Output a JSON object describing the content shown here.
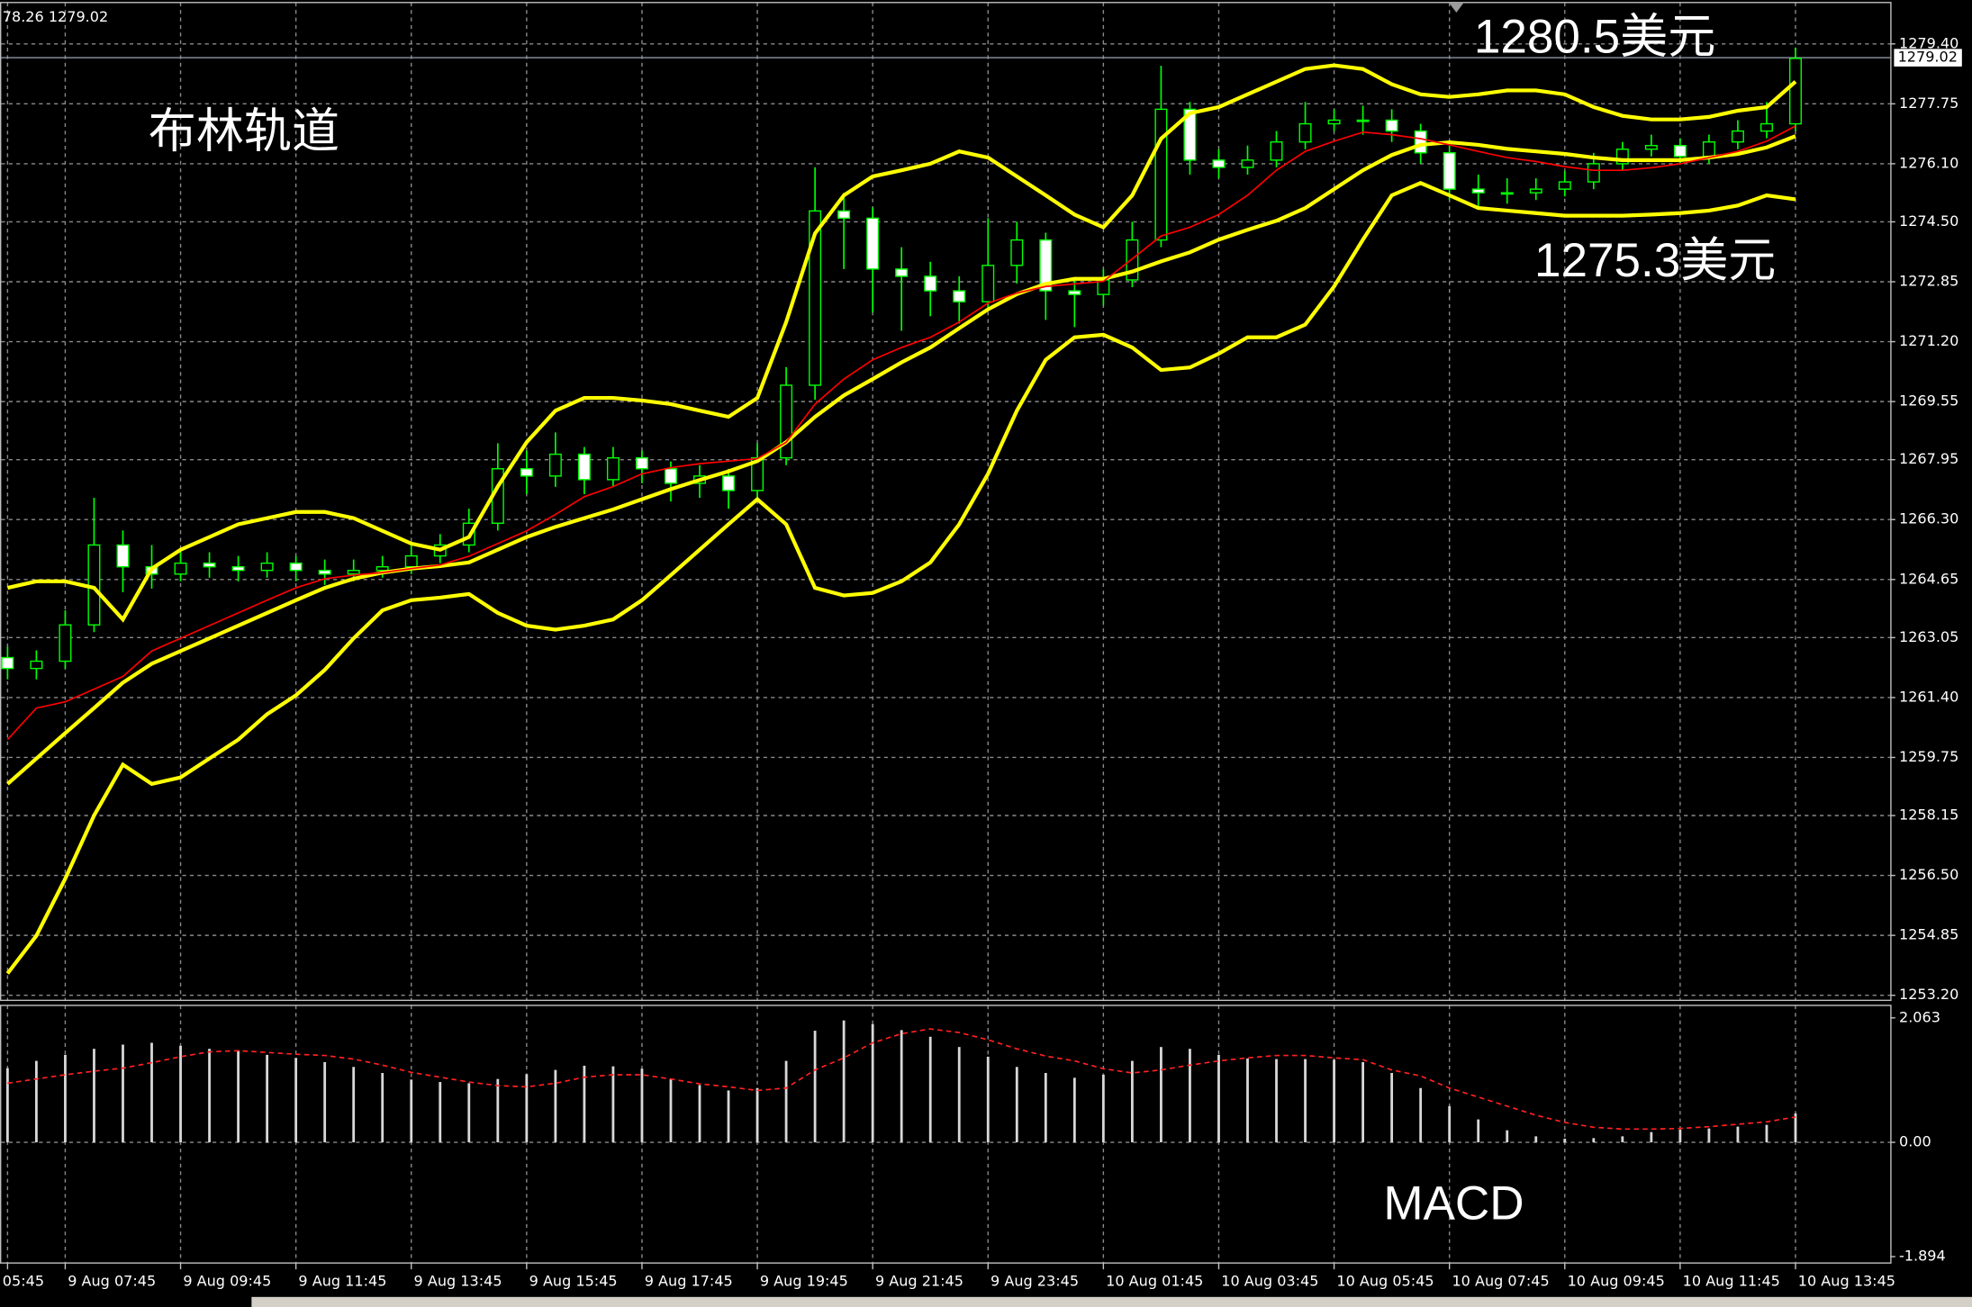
{
  "chart_data": [
    {
      "type": "candlestick",
      "info": "78.26 1279.02",
      "current_price": 1279.02,
      "annotations": [
        "布林轨道",
        "1280.5美元",
        "1275.3美元"
      ],
      "categories": [
        "05:45",
        null,
        "9 Aug 07:45",
        null,
        null,
        null,
        "9 Aug 09:45",
        null,
        null,
        null,
        "9 Aug 11:45",
        null,
        null,
        null,
        "9 Aug 13:45",
        null,
        null,
        null,
        "9 Aug 15:45",
        null,
        null,
        null,
        "9 Aug 17:45",
        null,
        null,
        null,
        "9 Aug 19:45",
        null,
        null,
        null,
        "9 Aug 21:45",
        null,
        null,
        null,
        "9 Aug 23:45",
        null,
        null,
        null,
        "10 Aug 01:45",
        null,
        null,
        null,
        "10 Aug 03:45",
        null,
        null,
        null,
        "10 Aug 05:45",
        null,
        null,
        null,
        "10 Aug 07:45",
        null,
        null,
        null,
        "10 Aug 09:45",
        null,
        null,
        null,
        "10 Aug 11:45",
        null,
        null,
        null,
        "10 Aug 13:45"
      ],
      "open": [
        1262.5,
        1262.2,
        1262.4,
        1263.4,
        1265.6,
        1265.0,
        1264.8,
        1265.1,
        1265.0,
        1264.9,
        1265.1,
        1264.9,
        1264.8,
        1264.9,
        1265.0,
        1265.3,
        1265.6,
        1266.2,
        1267.7,
        1267.5,
        1268.1,
        1267.4,
        1268.0,
        1267.7,
        1267.3,
        1267.5,
        1267.1,
        1268.0,
        1270.0,
        1274.8,
        1274.6,
        1273.2,
        1273.0,
        1272.6,
        1272.3,
        1273.3,
        1274.0,
        1272.6,
        1272.5,
        1272.9,
        1274.0,
        1277.6,
        1276.2,
        1276.0,
        1276.2,
        1276.7,
        1277.2,
        1277.3,
        1277.3,
        1277.0,
        1276.4,
        1275.4,
        1275.3,
        1275.3,
        1275.4,
        1275.6,
        1276.1,
        1276.5,
        1276.6,
        1276.3,
        1276.7,
        1277.0,
        1277.2
      ],
      "high": [
        1262.8,
        1262.7,
        1263.8,
        1266.9,
        1266.0,
        1265.6,
        1265.5,
        1265.4,
        1265.3,
        1265.4,
        1265.3,
        1265.2,
        1265.2,
        1265.3,
        1265.6,
        1265.9,
        1266.6,
        1268.4,
        1268.2,
        1268.7,
        1268.3,
        1268.3,
        1268.2,
        1267.9,
        1267.8,
        1267.7,
        1268.4,
        1270.5,
        1276.0,
        1275.3,
        1274.9,
        1273.8,
        1273.4,
        1273.0,
        1274.6,
        1274.5,
        1274.2,
        1272.9,
        1273.2,
        1274.5,
        1278.8,
        1277.8,
        1276.5,
        1276.6,
        1277.0,
        1277.8,
        1277.6,
        1277.7,
        1277.6,
        1277.2,
        1276.6,
        1275.8,
        1275.7,
        1275.7,
        1275.9,
        1276.4,
        1276.7,
        1276.9,
        1276.8,
        1276.9,
        1277.3,
        1277.8,
        1279.3
      ],
      "low": [
        1261.9,
        1261.9,
        1262.2,
        1263.2,
        1264.3,
        1264.4,
        1264.6,
        1264.7,
        1264.6,
        1264.7,
        1264.6,
        1264.5,
        1264.6,
        1264.7,
        1264.8,
        1265.1,
        1265.4,
        1266.0,
        1267.0,
        1267.2,
        1267.0,
        1267.2,
        1267.3,
        1266.8,
        1266.9,
        1266.6,
        1266.9,
        1267.8,
        1269.6,
        1273.2,
        1272.0,
        1271.5,
        1271.9,
        1271.7,
        1272.1,
        1272.8,
        1271.8,
        1271.6,
        1272.2,
        1272.7,
        1273.8,
        1275.8,
        1275.7,
        1275.8,
        1276.0,
        1276.5,
        1277.0,
        1276.9,
        1276.7,
        1276.1,
        1275.1,
        1274.9,
        1275.0,
        1275.1,
        1275.2,
        1275.4,
        1275.9,
        1276.3,
        1276.1,
        1276.1,
        1276.5,
        1276.8,
        1277.0
      ],
      "close": [
        1262.2,
        1262.4,
        1263.4,
        1265.6,
        1265.0,
        1264.8,
        1265.1,
        1265.0,
        1264.9,
        1265.1,
        1264.9,
        1264.8,
        1264.9,
        1265.0,
        1265.3,
        1265.6,
        1266.2,
        1267.7,
        1267.5,
        1268.1,
        1267.4,
        1268.0,
        1267.7,
        1267.3,
        1267.5,
        1267.1,
        1268.0,
        1270.0,
        1274.8,
        1274.6,
        1273.2,
        1273.0,
        1272.6,
        1272.3,
        1273.3,
        1274.0,
        1272.6,
        1272.5,
        1272.9,
        1274.0,
        1277.6,
        1276.2,
        1276.0,
        1276.2,
        1276.7,
        1277.2,
        1277.3,
        1277.3,
        1277.0,
        1276.4,
        1275.4,
        1275.3,
        1275.3,
        1275.4,
        1275.6,
        1276.1,
        1276.5,
        1276.6,
        1276.3,
        1276.7,
        1277.0,
        1277.2,
        1279.0
      ],
      "candle_color": "#00ff00",
      "series": [
        {
          "color": "#ffff00",
          "values": [
            1264.42,
            1264.6,
            1264.6,
            1264.42,
            1263.55,
            1264.95,
            1265.47,
            1265.82,
            1266.17,
            1266.34,
            1266.51,
            1266.51,
            1266.34,
            1265.99,
            1265.64,
            1265.47,
            1265.82,
            1267.21,
            1268.43,
            1269.3,
            1269.65,
            1269.65,
            1269.58,
            1269.48,
            1269.3,
            1269.13,
            1269.65,
            1271.74,
            1274.18,
            1275.23,
            1275.75,
            1275.92,
            1276.1,
            1276.44,
            1276.27,
            1275.75,
            1275.23,
            1274.7,
            1274.35,
            1275.23,
            1276.79,
            1277.49,
            1277.66,
            1278.01,
            1278.36,
            1278.71,
            1278.81,
            1278.71,
            1278.29,
            1278.01,
            1277.94,
            1278.01,
            1278.12,
            1278.12,
            1278.01,
            1277.66,
            1277.42,
            1277.32,
            1277.32,
            1277.39,
            1277.56,
            1277.66,
            1278.36
          ]
        },
        {
          "color": "#ffff00",
          "values": [
            1259.02,
            1259.72,
            1260.42,
            1261.11,
            1261.81,
            1262.33,
            1262.68,
            1263.03,
            1263.38,
            1263.73,
            1264.08,
            1264.42,
            1264.67,
            1264.84,
            1264.95,
            1265.02,
            1265.12,
            1265.47,
            1265.82,
            1266.1,
            1266.34,
            1266.58,
            1266.86,
            1267.14,
            1267.39,
            1267.63,
            1267.91,
            1268.43,
            1269.13,
            1269.72,
            1270.17,
            1270.63,
            1271.04,
            1271.57,
            1272.09,
            1272.51,
            1272.79,
            1272.93,
            1272.93,
            1273.13,
            1273.41,
            1273.66,
            1274.01,
            1274.28,
            1274.53,
            1274.88,
            1275.4,
            1275.92,
            1276.34,
            1276.62,
            1276.69,
            1276.62,
            1276.51,
            1276.44,
            1276.37,
            1276.27,
            1276.2,
            1276.2,
            1276.2,
            1276.27,
            1276.37,
            1276.55,
            1276.86
          ]
        },
        {
          "color": "#ffff00",
          "values": [
            1253.8,
            1254.84,
            1256.41,
            1258.15,
            1259.55,
            1259.02,
            1259.2,
            1259.72,
            1260.24,
            1260.94,
            1261.46,
            1262.16,
            1263.03,
            1263.8,
            1264.08,
            1264.15,
            1264.25,
            1263.73,
            1263.38,
            1263.27,
            1263.38,
            1263.55,
            1264.08,
            1264.77,
            1265.47,
            1266.17,
            1266.86,
            1266.17,
            1264.42,
            1264.21,
            1264.28,
            1264.6,
            1265.12,
            1266.17,
            1267.56,
            1269.3,
            1270.7,
            1271.32,
            1271.39,
            1271.04,
            1270.42,
            1270.49,
            1270.87,
            1271.32,
            1271.32,
            1271.67,
            1272.72,
            1274.01,
            1275.23,
            1275.57,
            1275.23,
            1274.88,
            1274.81,
            1274.74,
            1274.67,
            1274.67,
            1274.67,
            1274.7,
            1274.74,
            1274.81,
            1274.95,
            1275.23,
            1275.12
          ]
        },
        {
          "color": "#ff0000",
          "values": [
            1260.24,
            1261.11,
            1261.28,
            1261.63,
            1261.98,
            1262.68,
            1263.03,
            1263.38,
            1263.73,
            1264.08,
            1264.42,
            1264.67,
            1264.77,
            1264.84,
            1264.95,
            1265.05,
            1265.29,
            1265.64,
            1265.99,
            1266.44,
            1266.93,
            1267.21,
            1267.56,
            1267.73,
            1267.84,
            1267.91,
            1267.98,
            1268.43,
            1269.48,
            1270.17,
            1270.7,
            1271.04,
            1271.32,
            1271.74,
            1272.26,
            1272.54,
            1272.72,
            1272.79,
            1272.86,
            1273.48,
            1274.11,
            1274.35,
            1274.7,
            1275.23,
            1275.92,
            1276.44,
            1276.72,
            1276.97,
            1276.9,
            1276.79,
            1276.62,
            1276.44,
            1276.27,
            1276.16,
            1276.02,
            1275.92,
            1275.92,
            1275.99,
            1276.1,
            1276.27,
            1276.44,
            1276.72,
            1277.14
          ]
        }
      ],
      "ylim": [
        1253.06,
        1280.54
      ],
      "yticks": [
        {
          "value": 1279.4,
          "label": "1279.40"
        },
        1277.75,
        {
          "value": 1276.1,
          "label": "1276.10"
        },
        {
          "value": 1274.5,
          "label": "1274.50"
        },
        1272.85,
        {
          "value": 1271.2,
          "label": "1271.20"
        },
        1269.55,
        1267.95,
        {
          "value": 1266.3,
          "label": "1266.30"
        },
        1264.65,
        1263.05,
        {
          "value": 1261.4,
          "label": "1261.40"
        },
        1259.75,
        1258.15,
        {
          "value": 1256.5,
          "label": "1256.50"
        },
        1254.85,
        {
          "value": 1253.2,
          "label": "1253.20"
        }
      ],
      "grid": true
    },
    {
      "type": "macd",
      "annotation": "MACD",
      "histogram": [
        1.23,
        1.35,
        1.45,
        1.55,
        1.62,
        1.65,
        1.6,
        1.55,
        1.52,
        1.45,
        1.4,
        1.33,
        1.25,
        1.15,
        1.04,
        1.0,
        0.98,
        1.05,
        1.13,
        1.2,
        1.27,
        1.26,
        1.22,
        1.05,
        0.95,
        0.86,
        0.9,
        1.35,
        1.85,
        2.02,
        1.96,
        1.86,
        1.75,
        1.58,
        1.42,
        1.25,
        1.15,
        1.07,
        1.12,
        1.35,
        1.58,
        1.55,
        1.45,
        1.39,
        1.38,
        1.38,
        1.37,
        1.33,
        1.15,
        0.9,
        0.6,
        0.38,
        0.2,
        0.1,
        0.06,
        0.07,
        0.1,
        0.17,
        0.21,
        0.23,
        0.26,
        0.29,
        0.48
      ],
      "signal": [
        0.98,
        1.05,
        1.12,
        1.18,
        1.23,
        1.32,
        1.42,
        1.5,
        1.52,
        1.49,
        1.46,
        1.44,
        1.38,
        1.28,
        1.16,
        1.08,
        1.0,
        0.94,
        0.92,
        0.98,
        1.08,
        1.12,
        1.12,
        1.05,
        0.97,
        0.92,
        0.86,
        0.9,
        1.2,
        1.4,
        1.65,
        1.8,
        1.88,
        1.82,
        1.7,
        1.55,
        1.43,
        1.35,
        1.22,
        1.15,
        1.2,
        1.28,
        1.35,
        1.4,
        1.44,
        1.44,
        1.4,
        1.37,
        1.2,
        1.1,
        0.9,
        0.75,
        0.6,
        0.45,
        0.33,
        0.25,
        0.22,
        0.22,
        0.23,
        0.26,
        0.3,
        0.34,
        0.42
      ],
      "histogram_color": "#d8d8d8",
      "signal_color": "#ff2020",
      "ylim": [
        -2.0,
        2.27
      ],
      "yticks": [
        2.063,
        {
          "value": 0,
          "label": "0.00"
        },
        -1.894
      ],
      "grid": true
    }
  ]
}
